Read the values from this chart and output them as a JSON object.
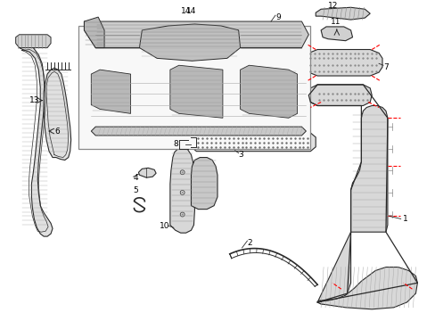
{
  "background_color": "#ffffff",
  "line_color": "#2a2a2a",
  "red_dash_color": "#ff0000",
  "figsize": [
    4.89,
    3.6
  ],
  "dpi": 100
}
